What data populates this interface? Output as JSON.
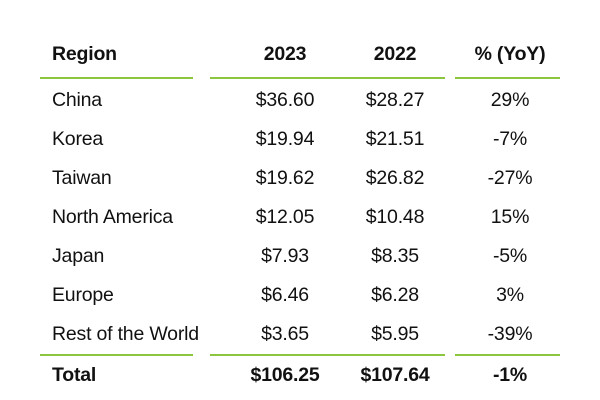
{
  "table": {
    "headers": [
      "Region",
      "2023",
      "2022",
      "% (YoY)"
    ],
    "rows": [
      [
        "China",
        "$36.60",
        "$28.27",
        "29%"
      ],
      [
        "Korea",
        "$19.94",
        "$21.51",
        "-7%"
      ],
      [
        "Taiwan",
        "$19.62",
        "$26.82",
        "-27%"
      ],
      [
        "North America",
        "$12.05",
        "$10.48",
        "15%"
      ],
      [
        "Japan",
        "$7.93",
        "$8.35",
        "-5%"
      ],
      [
        "Europe",
        "$6.46",
        "$6.28",
        "3%"
      ],
      [
        "Rest of the World",
        "$3.65",
        "$5.95",
        "-39%"
      ]
    ],
    "total": [
      "Total",
      "$106.25",
      "$107.64",
      "-1%"
    ]
  },
  "colors": {
    "rule": "#8cc63f",
    "text": "#111111"
  }
}
